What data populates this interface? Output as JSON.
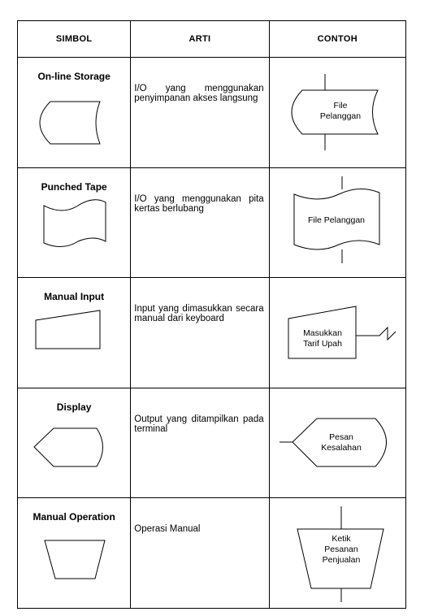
{
  "header": {
    "col_symbol": "SIMBOL",
    "col_meaning": "ARTI",
    "col_example": "CONTOH"
  },
  "rows": [
    {
      "name": "On-line Storage",
      "meaning": "I/O yang menggunakan penyimpanan akses langsung",
      "example_lines": [
        "File",
        "Pelanggan"
      ],
      "icon": "online-storage-icon"
    },
    {
      "name": "Punched Tape",
      "meaning": "I/O yang menggunakan pita kertas berlubang",
      "example_lines": [
        "File Pelanggan"
      ],
      "icon": "punched-tape-icon"
    },
    {
      "name": "Manual Input",
      "meaning": "Input yang dimasukkan secara manual dari keyboard",
      "example_lines": [
        "Masukkan",
        "Tarif Upah"
      ],
      "icon": "manual-input-icon"
    },
    {
      "name": "Display",
      "meaning": "Output yang ditampilkan pada terminal",
      "example_lines": [
        "Pesan",
        "Kesalahan"
      ],
      "icon": "display-icon"
    },
    {
      "name": "Manual Operation",
      "meaning": "Operasi Manual",
      "example_lines": [
        "Ketik",
        "Pesanan",
        "Penjualan"
      ],
      "icon": "manual-operation-icon"
    }
  ]
}
